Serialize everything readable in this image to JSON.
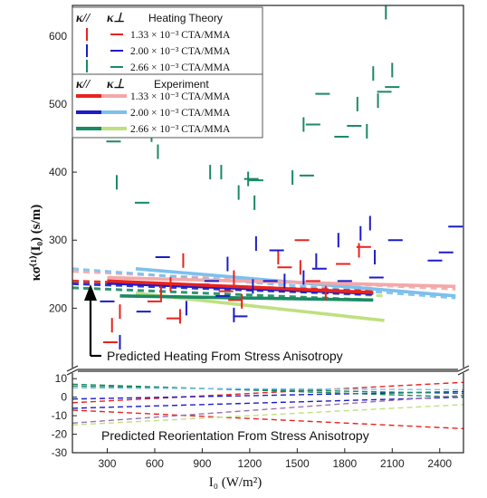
{
  "chart_data": {
    "type": "scatter",
    "xlabel": "I₀ (W/m²)",
    "ylabel": "κσ⁽¹⁾(I₀)  (s/m)",
    "xlim": [
      80,
      2550
    ],
    "xticks": [
      300,
      600,
      900,
      1200,
      1500,
      1800,
      2100,
      2400
    ],
    "upper": {
      "ylim": [
        110,
        645
      ],
      "yticks": [
        200,
        300,
        400,
        500,
        600
      ],
      "points_parallel": [
        {
          "x": 330,
          "y": 175,
          "c": "red"
        },
        {
          "x": 380,
          "y": 195,
          "c": "red"
        },
        {
          "x": 640,
          "y": 222,
          "c": "red"
        },
        {
          "x": 700,
          "y": 235,
          "c": "red"
        },
        {
          "x": 760,
          "y": 188,
          "c": "red"
        },
        {
          "x": 780,
          "y": 270,
          "c": "red"
        },
        {
          "x": 1100,
          "y": 245,
          "c": "red"
        },
        {
          "x": 1150,
          "y": 210,
          "c": "red"
        },
        {
          "x": 1380,
          "y": 275,
          "c": "red"
        },
        {
          "x": 1520,
          "y": 260,
          "c": "red"
        },
        {
          "x": 1680,
          "y": 222,
          "c": "red"
        },
        {
          "x": 1890,
          "y": 285,
          "c": "red"
        },
        {
          "x": 380,
          "y": 150,
          "c": "blue"
        },
        {
          "x": 800,
          "y": 200,
          "c": "blue"
        },
        {
          "x": 1060,
          "y": 265,
          "c": "blue"
        },
        {
          "x": 1100,
          "y": 190,
          "c": "blue"
        },
        {
          "x": 1220,
          "y": 232,
          "c": "blue"
        },
        {
          "x": 1240,
          "y": 295,
          "c": "blue"
        },
        {
          "x": 1420,
          "y": 240,
          "c": "blue"
        },
        {
          "x": 1540,
          "y": 245,
          "c": "blue"
        },
        {
          "x": 1620,
          "y": 270,
          "c": "blue"
        },
        {
          "x": 1760,
          "y": 300,
          "c": "blue"
        },
        {
          "x": 1900,
          "y": 310,
          "c": "blue"
        },
        {
          "x": 1960,
          "y": 325,
          "c": "blue"
        },
        {
          "x": 1990,
          "y": 275,
          "c": "blue"
        },
        {
          "x": 360,
          "y": 385,
          "c": "green"
        },
        {
          "x": 580,
          "y": 455,
          "c": "green"
        },
        {
          "x": 620,
          "y": 430,
          "c": "green"
        },
        {
          "x": 950,
          "y": 400,
          "c": "green"
        },
        {
          "x": 1020,
          "y": 400,
          "c": "green"
        },
        {
          "x": 1130,
          "y": 370,
          "c": "green"
        },
        {
          "x": 1190,
          "y": 390,
          "c": "green"
        },
        {
          "x": 1230,
          "y": 355,
          "c": "green"
        },
        {
          "x": 1470,
          "y": 392,
          "c": "green"
        },
        {
          "x": 1540,
          "y": 470,
          "c": "green"
        },
        {
          "x": 1880,
          "y": 500,
          "c": "green"
        },
        {
          "x": 1940,
          "y": 460,
          "c": "green"
        },
        {
          "x": 1980,
          "y": 545,
          "c": "green"
        },
        {
          "x": 2010,
          "y": 505,
          "c": "green"
        },
        {
          "x": 2060,
          "y": 635,
          "c": "green"
        },
        {
          "x": 2100,
          "y": 550,
          "c": "green"
        }
      ],
      "points_perp": [
        {
          "x": 320,
          "y": 150,
          "c": "red"
        },
        {
          "x": 600,
          "y": 210,
          "c": "red"
        },
        {
          "x": 720,
          "y": 185,
          "c": "red"
        },
        {
          "x": 900,
          "y": 235,
          "c": "red"
        },
        {
          "x": 1050,
          "y": 225,
          "c": "red"
        },
        {
          "x": 1110,
          "y": 212,
          "c": "red"
        },
        {
          "x": 1420,
          "y": 260,
          "c": "red"
        },
        {
          "x": 1530,
          "y": 300,
          "c": "red"
        },
        {
          "x": 1600,
          "y": 240,
          "c": "red"
        },
        {
          "x": 1790,
          "y": 265,
          "c": "red"
        },
        {
          "x": 1920,
          "y": 290,
          "c": "red"
        },
        {
          "x": 300,
          "y": 210,
          "c": "blue"
        },
        {
          "x": 530,
          "y": 195,
          "c": "blue"
        },
        {
          "x": 650,
          "y": 275,
          "c": "blue"
        },
        {
          "x": 960,
          "y": 240,
          "c": "blue"
        },
        {
          "x": 1030,
          "y": 218,
          "c": "blue"
        },
        {
          "x": 1140,
          "y": 188,
          "c": "blue"
        },
        {
          "x": 1330,
          "y": 240,
          "c": "blue"
        },
        {
          "x": 1370,
          "y": 285,
          "c": "blue"
        },
        {
          "x": 1640,
          "y": 258,
          "c": "blue"
        },
        {
          "x": 1800,
          "y": 240,
          "c": "blue"
        },
        {
          "x": 2000,
          "y": 245,
          "c": "blue"
        },
        {
          "x": 2120,
          "y": 300,
          "c": "blue"
        },
        {
          "x": 2370,
          "y": 270,
          "c": "blue"
        },
        {
          "x": 2440,
          "y": 282,
          "c": "blue"
        },
        {
          "x": 2500,
          "y": 320,
          "c": "blue"
        },
        {
          "x": 340,
          "y": 445,
          "c": "green"
        },
        {
          "x": 520,
          "y": 355,
          "c": "green"
        },
        {
          "x": 1210,
          "y": 390,
          "c": "green"
        },
        {
          "x": 1240,
          "y": 388,
          "c": "green"
        },
        {
          "x": 1560,
          "y": 395,
          "c": "green"
        },
        {
          "x": 1600,
          "y": 470,
          "c": "green"
        },
        {
          "x": 1660,
          "y": 515,
          "c": "green"
        },
        {
          "x": 1780,
          "y": 452,
          "c": "green"
        },
        {
          "x": 1860,
          "y": 468,
          "c": "green"
        },
        {
          "x": 2050,
          "y": 518,
          "c": "green"
        },
        {
          "x": 2100,
          "y": 525,
          "c": "green"
        }
      ],
      "experiment_lines": [
        {
          "name": "1.33 × 10⁻³ CTA/MMA (κ//)",
          "color": "#e8231e",
          "x": [
            300,
            1980
          ],
          "y": [
            240,
            223
          ]
        },
        {
          "name": "2.00 × 10⁻³ CTA/MMA (κ//)",
          "color": "#1c1cc8",
          "x": [
            300,
            1980
          ],
          "y": [
            237,
            222
          ]
        },
        {
          "name": "2.66 × 10⁻³ CTA/MMA (κ//)",
          "color": "#1a8a62",
          "x": [
            380,
            1980
          ],
          "y": [
            218,
            212
          ]
        },
        {
          "name": "1.33 × 10⁻³ CTA/MMA (κ⊥)",
          "color": "#f4a8a8",
          "x": [
            300,
            2500
          ],
          "y": [
            245,
            232
          ]
        },
        {
          "name": "2.00 × 10⁻³ CTA/MMA (κ⊥)",
          "color": "#7cc0ee",
          "x": [
            480,
            2500
          ],
          "y": [
            258,
            218
          ]
        },
        {
          "name": "2.66 × 10⁻³ CTA/MMA (κ⊥)",
          "color": "#bfe080",
          "x": [
            480,
            2050
          ],
          "y": [
            222,
            182
          ]
        }
      ],
      "heating_lines": [
        {
          "color": "#f4a8a8",
          "x": [
            80,
            2500
          ],
          "y": [
            254,
            228
          ]
        },
        {
          "color": "#7cc0ee",
          "x": [
            80,
            2500
          ],
          "y": [
            258,
            215
          ]
        },
        {
          "color": "#bfe080",
          "x": [
            80,
            2050
          ],
          "y": [
            240,
            218
          ]
        },
        {
          "color": "#e8231e",
          "x": [
            80,
            1980
          ],
          "y": [
            240,
            225
          ]
        },
        {
          "color": "#1c1cc8",
          "x": [
            80,
            1980
          ],
          "y": [
            236,
            220
          ]
        },
        {
          "color": "#1a8a62",
          "x": [
            80,
            1980
          ],
          "y": [
            230,
            212
          ]
        }
      ],
      "annotation": "Predicted Heating From Stress Anisotropy"
    },
    "lower": {
      "ylim": [
        -30,
        14
      ],
      "yticks": [
        -30,
        -20,
        -10,
        0,
        10
      ],
      "lines": [
        {
          "color": "#e8231e",
          "x": [
            80,
            2550
          ],
          "y": [
            -3,
            8
          ]
        },
        {
          "color": "#e8231e",
          "x": [
            80,
            2550
          ],
          "y": [
            -7,
            -17
          ]
        },
        {
          "color": "#1c1cc8",
          "x": [
            80,
            2550
          ],
          "y": [
            -1,
            3
          ]
        },
        {
          "color": "#1c1cc8",
          "x": [
            80,
            2550
          ],
          "y": [
            -6,
            0
          ]
        },
        {
          "color": "#1a8a62",
          "x": [
            80,
            2550
          ],
          "y": [
            6,
            2
          ]
        },
        {
          "color": "#1a8a62",
          "x": [
            80,
            2550
          ],
          "y": [
            7,
            0
          ]
        },
        {
          "color": "#bfe080",
          "x": [
            80,
            2550
          ],
          "y": [
            -15,
            -4
          ]
        },
        {
          "color": "#9a6fb0",
          "x": [
            80,
            2550
          ],
          "y": [
            -14,
            1
          ]
        },
        {
          "color": "#7cc0ee",
          "x": [
            80,
            2550
          ],
          "y": [
            5,
            4
          ]
        }
      ],
      "annotation": "Predicted Reorientation From Stress Anisotropy"
    },
    "legend": {
      "placement": "top-left",
      "kappa_par": "κ//",
      "kappa_perp": "κ⊥",
      "theory_title": "Heating Theory",
      "experiment_title": "Experiment",
      "entries": [
        "1.33 × 10⁻³ CTA/MMA",
        "2.00 × 10⁻³ CTA/MMA",
        "2.66 × 10⁻³ CTA/MMA"
      ]
    },
    "colors": {
      "red": "#e8231e",
      "blue": "#1c1cc8",
      "green": "#1a8a62",
      "pink": "#f4a8a8",
      "lightblue": "#7cc0ee",
      "lightgreen": "#bfe080"
    }
  }
}
